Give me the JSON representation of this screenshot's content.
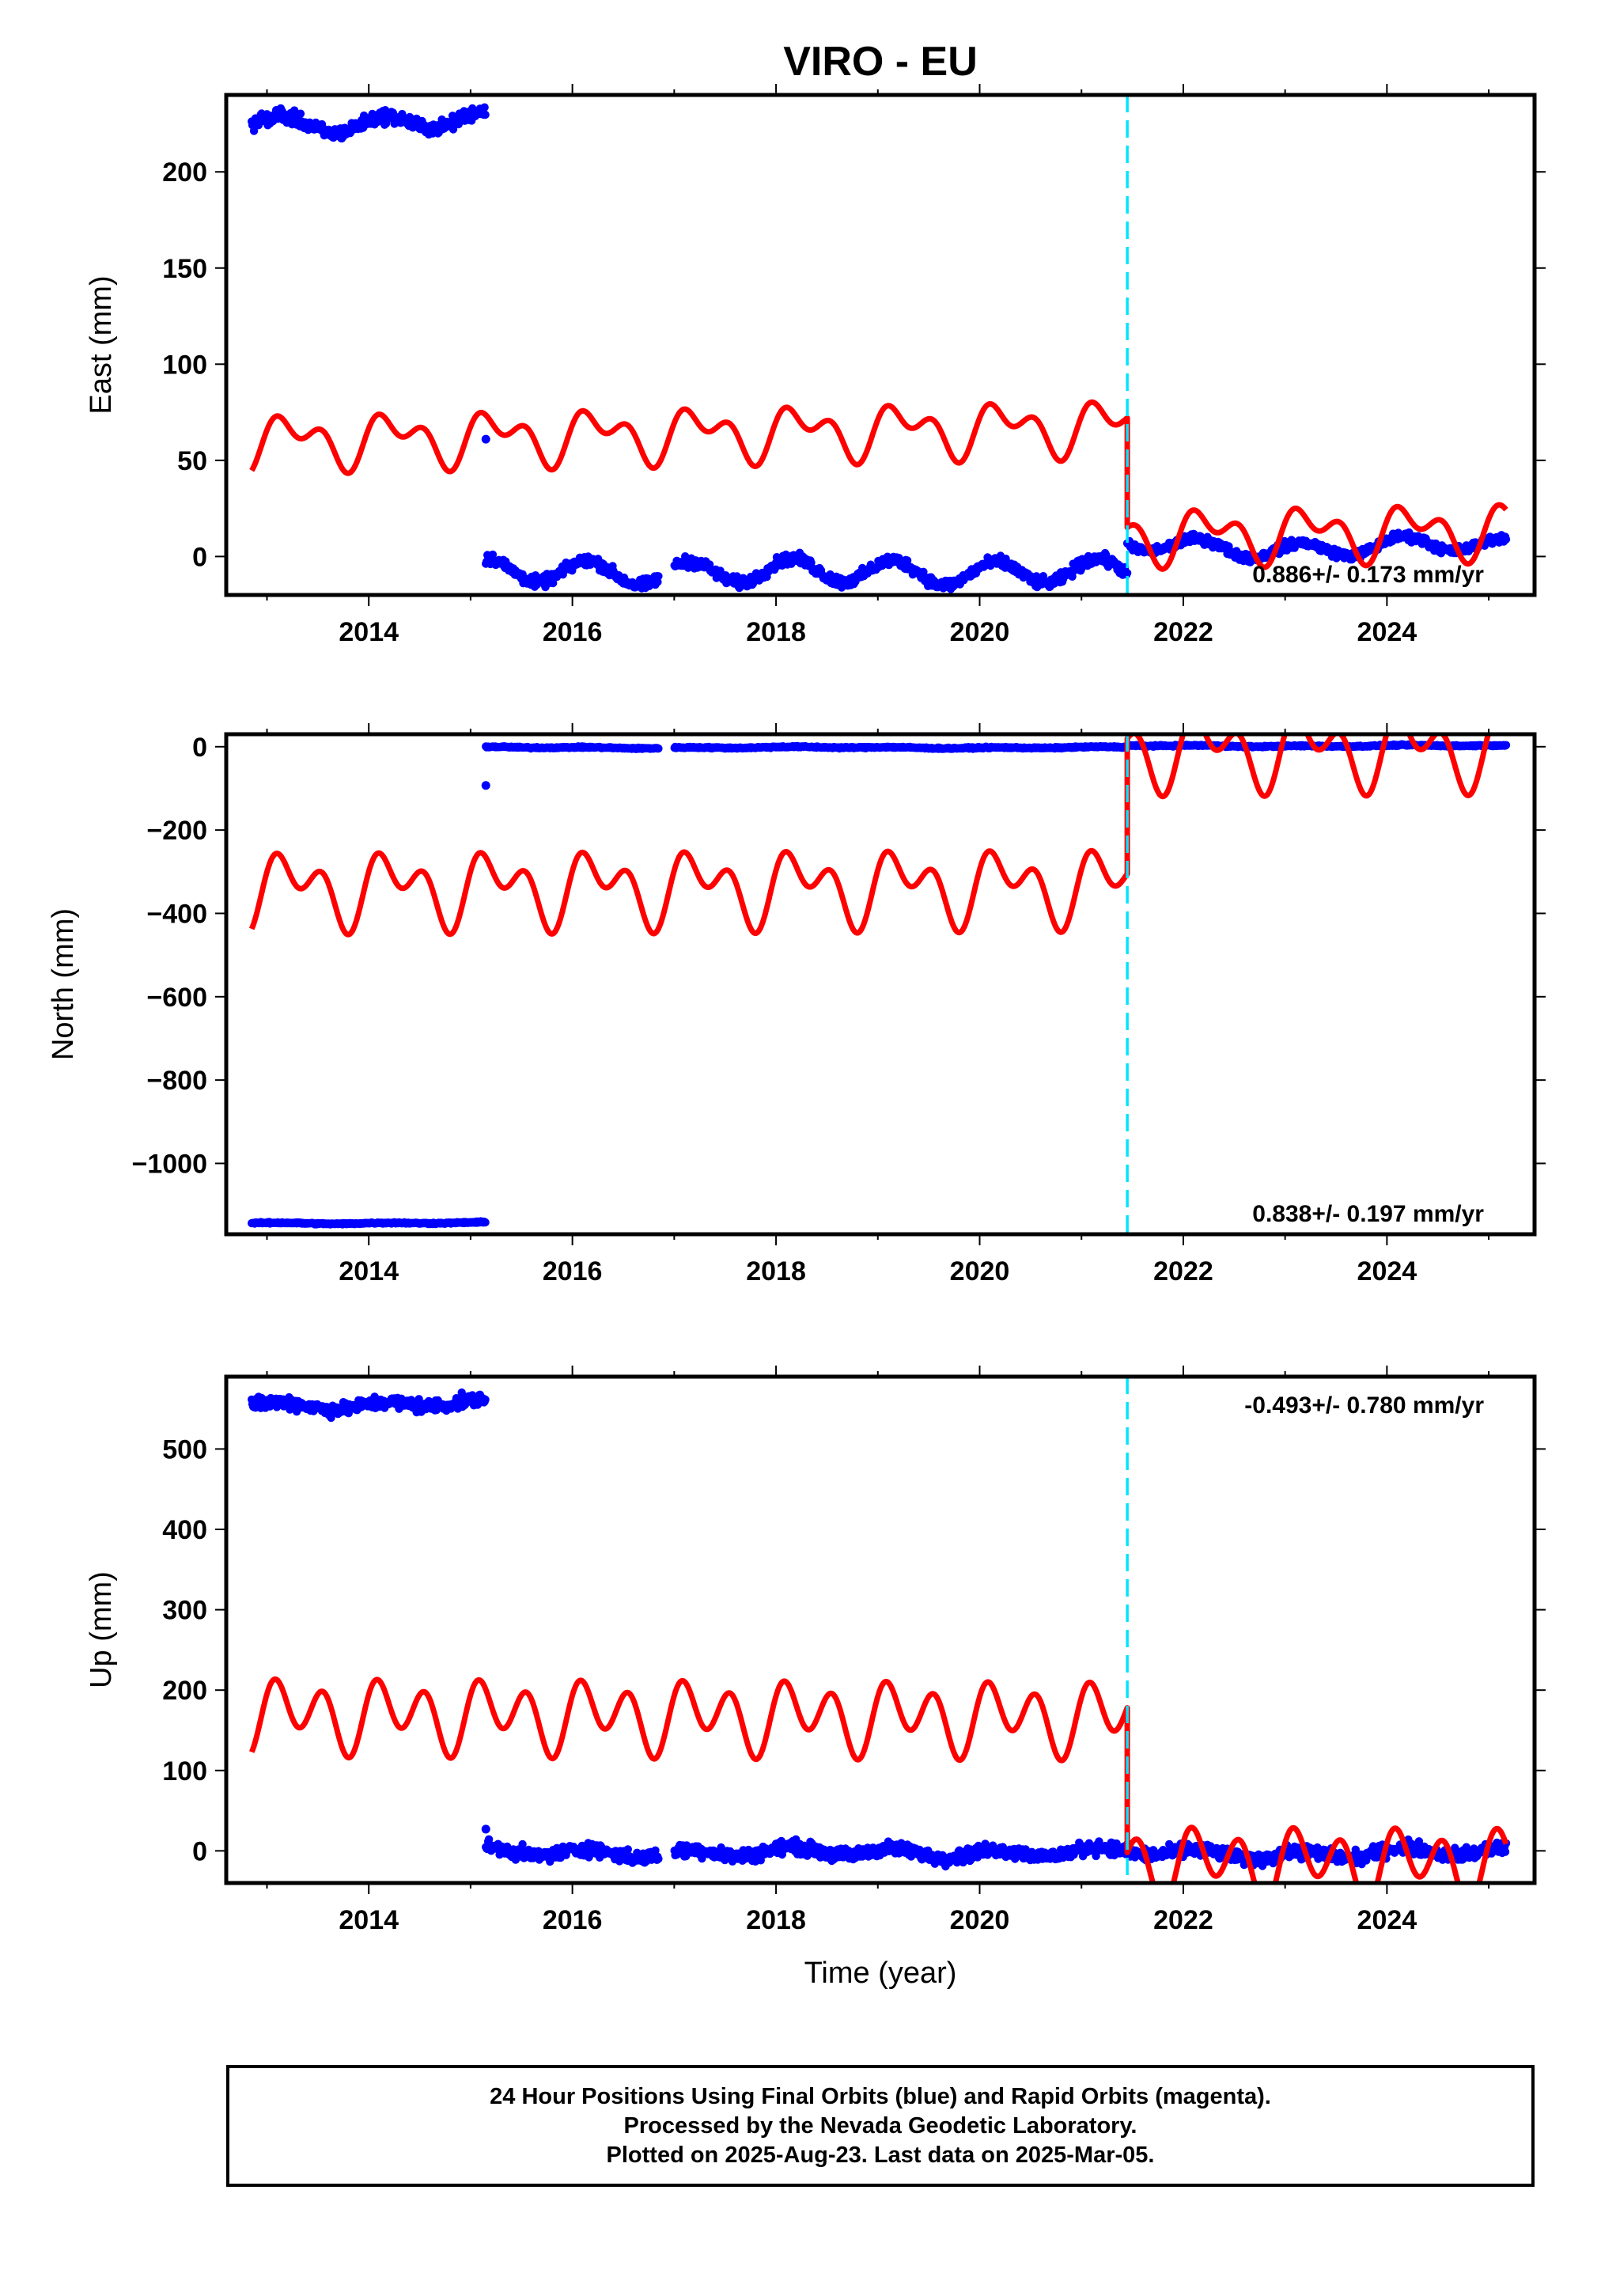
{
  "title": "VIRO - EU",
  "xlabel": "Time (year)",
  "footer": {
    "line1": "24 Hour Positions Using Final Orbits (blue) and Rapid Orbits (magenta).",
    "line2": "Processed by the Nevada Geodetic Laboratory.",
    "line3": "Plotted on 2025-Aug-23. Last data on 2025-Mar-05."
  },
  "colors": {
    "data": "#0000ff",
    "model": "#ff0000",
    "offset": "#00e5ff",
    "frame": "#000000"
  },
  "chart_data": [
    {
      "type": "scatter",
      "ylabel": "East (mm)",
      "rate_text": "0.886+/- 0.173 mm/yr",
      "rate_position": "bottom-right",
      "xlim": [
        2012.6,
        2025.45
      ],
      "ylim": [
        -20,
        240
      ],
      "xticks": [
        2014,
        2016,
        2018,
        2020,
        2022,
        2024
      ],
      "yticks": [
        0,
        50,
        100,
        150,
        200
      ],
      "offset_x": 2021.45,
      "segments": [
        {
          "x_start": 2012.85,
          "x_end": 2015.15,
          "level": 226,
          "seasonal_amp": 4,
          "slow_amp": 2,
          "noise": 3
        },
        {
          "x_start": 2015.15,
          "x_end": 2021.45,
          "level": -8,
          "seasonal_amp": 6,
          "slow_amp": 1,
          "noise": 2.5
        },
        {
          "x_start": 2021.45,
          "x_end": 2025.17,
          "level": 5,
          "seasonal_amp": 4,
          "slow_amp": 2,
          "noise": 2
        }
      ],
      "gaps": [
        [
          2016.85,
          2017.0
        ]
      ],
      "outliers": [
        {
          "x": 2015.15,
          "y": 61
        }
      ],
      "model": [
        {
          "x_start": 2012.85,
          "x_end": 2021.45,
          "base": 60,
          "trend": 0.9,
          "a1": 10,
          "p1": 0,
          "a2": 8,
          "p2": 0.8
        },
        {
          "x_start": 2021.45,
          "x_end": 2025.17,
          "base": 3,
          "trend": 0.9,
          "a1": 10,
          "p1": 0,
          "a2": 8,
          "p2": 0.8
        }
      ]
    },
    {
      "type": "scatter",
      "ylabel": "North (mm)",
      "rate_text": "0.838+/- 0.197 mm/yr",
      "rate_position": "bottom-right",
      "xlim": [
        2012.6,
        2025.45
      ],
      "ylim": [
        -1170,
        30
      ],
      "xticks": [
        2014,
        2016,
        2018,
        2020,
        2022,
        2024
      ],
      "yticks": [
        0,
        -200,
        -400,
        -600,
        -800,
        -1000
      ],
      "ytick_labels": [
        "0",
        "−200",
        "−400",
        "−600",
        "−800",
        "−1000"
      ],
      "offset_x": 2021.45,
      "segments": [
        {
          "x_start": 2012.85,
          "x_end": 2015.15,
          "level": -1143,
          "seasonal_amp": 1,
          "slow_amp": 1,
          "noise": 1.5
        },
        {
          "x_start": 2015.15,
          "x_end": 2021.45,
          "level": -2,
          "seasonal_amp": 1,
          "slow_amp": 1,
          "noise": 1.5
        },
        {
          "x_start": 2021.45,
          "x_end": 2025.17,
          "level": 2,
          "seasonal_amp": 1,
          "slow_amp": 1,
          "noise": 1.5
        }
      ],
      "gaps": [
        [
          2016.85,
          2017.0
        ]
      ],
      "outliers": [
        {
          "x": 2015.15,
          "y": -93
        }
      ],
      "model": [
        {
          "x_start": 2012.85,
          "x_end": 2021.45,
          "base": -340,
          "trend": 0.8,
          "a1": 60,
          "p1": 0,
          "a2": 55,
          "p2": 0.8
        },
        {
          "x_start": 2021.45,
          "x_end": 2025.17,
          "base": -15,
          "trend": 0.8,
          "a1": 60,
          "p1": 0,
          "a2": 55,
          "p2": 0.8
        }
      ]
    },
    {
      "type": "scatter",
      "ylabel": "Up (mm)",
      "rate_text": "-0.493+/- 0.780 mm/yr",
      "rate_position": "top-right",
      "xlim": [
        2012.6,
        2025.45
      ],
      "ylim": [
        -40,
        590
      ],
      "xticks": [
        2014,
        2016,
        2018,
        2020,
        2022,
        2024
      ],
      "yticks": [
        0,
        100,
        200,
        300,
        400,
        500
      ],
      "offset_x": 2021.45,
      "segments": [
        {
          "x_start": 2012.85,
          "x_end": 2015.15,
          "level": 556,
          "seasonal_amp": 4,
          "slow_amp": 3,
          "noise": 7
        },
        {
          "x_start": 2015.15,
          "x_end": 2021.45,
          "level": -2,
          "seasonal_amp": 5,
          "slow_amp": 2,
          "noise": 7
        },
        {
          "x_start": 2021.45,
          "x_end": 2025.17,
          "level": -3,
          "seasonal_amp": 5,
          "slow_amp": 3,
          "noise": 7
        }
      ],
      "gaps": [
        [
          2016.85,
          2017.0
        ]
      ],
      "outliers": [
        {
          "x": 2015.15,
          "y": 27
        }
      ],
      "model": [
        {
          "x_start": 2012.85,
          "x_end": 2021.45,
          "base": 170,
          "trend": -0.5,
          "a1": 20,
          "p1": 0,
          "a2": 35,
          "p2": 0.8
        },
        {
          "x_start": 2021.45,
          "x_end": 2025.17,
          "base": -10,
          "trend": -0.5,
          "a1": 20,
          "p1": 0,
          "a2": 35,
          "p2": 0.8
        }
      ]
    }
  ]
}
